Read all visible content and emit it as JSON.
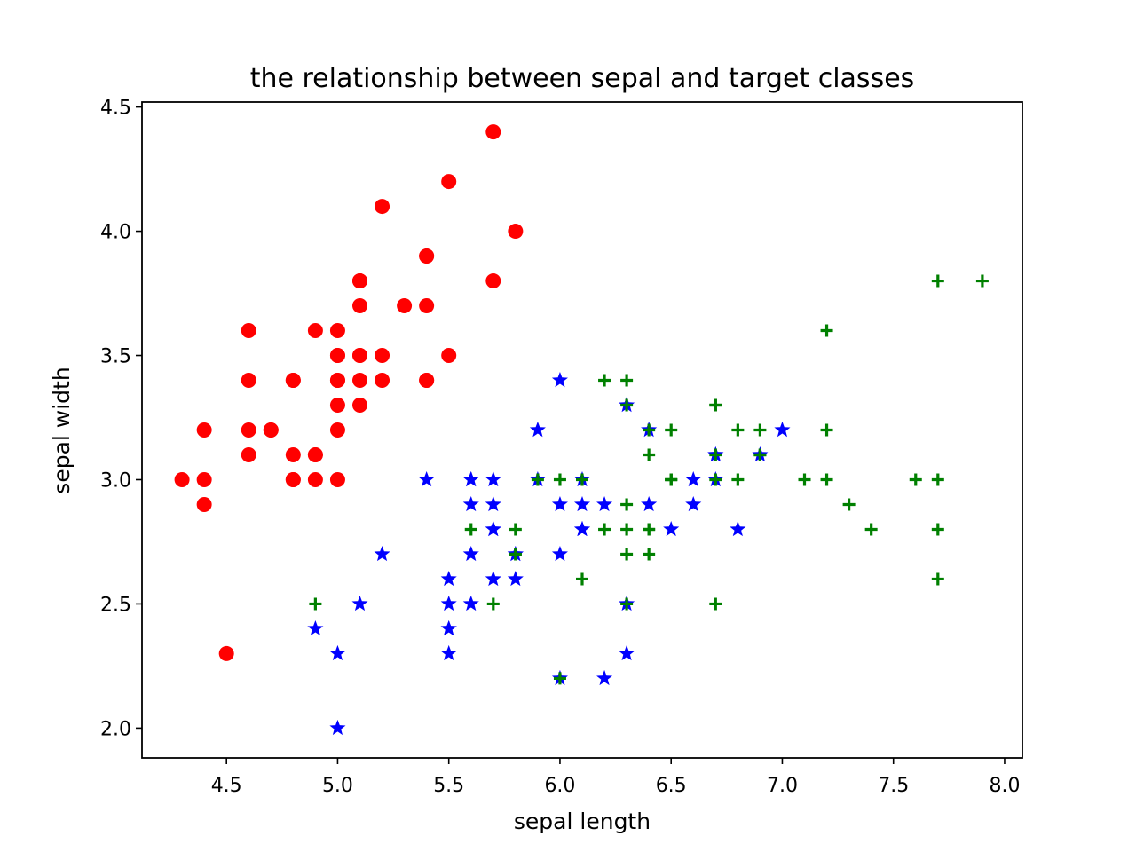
{
  "chart_data": {
    "type": "scatter",
    "title": "the relationship between sepal and target classes",
    "xlabel": "sepal length",
    "ylabel": "sepal width",
    "xlim": [
      4.12,
      8.08
    ],
    "ylim": [
      1.88,
      4.52
    ],
    "xticks": [
      4.5,
      5.0,
      5.5,
      6.0,
      6.5,
      7.0,
      7.5,
      8.0
    ],
    "xtick_labels": [
      "4.5",
      "5.0",
      "5.5",
      "6.0",
      "6.5",
      "7.0",
      "7.5",
      "8.0"
    ],
    "yticks": [
      2.0,
      2.5,
      3.0,
      3.5,
      4.0,
      4.5
    ],
    "ytick_labels": [
      "2.0",
      "2.5",
      "3.0",
      "3.5",
      "4.0",
      "4.5"
    ],
    "grid": false,
    "series": [
      {
        "marker": "circle",
        "color": "#ff0000",
        "points": [
          [
            5.1,
            3.5
          ],
          [
            4.9,
            3.0
          ],
          [
            4.7,
            3.2
          ],
          [
            4.6,
            3.1
          ],
          [
            5.0,
            3.6
          ],
          [
            5.4,
            3.9
          ],
          [
            4.6,
            3.4
          ],
          [
            5.0,
            3.4
          ],
          [
            4.4,
            2.9
          ],
          [
            4.9,
            3.1
          ],
          [
            5.4,
            3.7
          ],
          [
            4.8,
            3.4
          ],
          [
            4.8,
            3.0
          ],
          [
            4.3,
            3.0
          ],
          [
            5.8,
            4.0
          ],
          [
            5.7,
            4.4
          ],
          [
            5.4,
            3.9
          ],
          [
            5.1,
            3.5
          ],
          [
            5.7,
            3.8
          ],
          [
            5.1,
            3.8
          ],
          [
            5.4,
            3.4
          ],
          [
            5.1,
            3.7
          ],
          [
            4.6,
            3.6
          ],
          [
            5.1,
            3.3
          ],
          [
            4.8,
            3.4
          ],
          [
            5.0,
            3.0
          ],
          [
            5.0,
            3.4
          ],
          [
            5.2,
            3.5
          ],
          [
            5.2,
            3.4
          ],
          [
            4.7,
            3.2
          ],
          [
            4.8,
            3.1
          ],
          [
            5.4,
            3.4
          ],
          [
            5.2,
            4.1
          ],
          [
            5.5,
            4.2
          ],
          [
            4.9,
            3.1
          ],
          [
            5.0,
            3.2
          ],
          [
            5.5,
            3.5
          ],
          [
            4.9,
            3.6
          ],
          [
            4.4,
            3.0
          ],
          [
            5.1,
            3.4
          ],
          [
            5.0,
            3.5
          ],
          [
            4.5,
            2.3
          ],
          [
            4.4,
            3.2
          ],
          [
            5.0,
            3.5
          ],
          [
            5.1,
            3.8
          ],
          [
            4.8,
            3.0
          ],
          [
            5.1,
            3.8
          ],
          [
            4.6,
            3.2
          ],
          [
            5.3,
            3.7
          ],
          [
            5.0,
            3.3
          ]
        ]
      },
      {
        "marker": "star",
        "color": "#0000ff",
        "points": [
          [
            7.0,
            3.2
          ],
          [
            6.4,
            3.2
          ],
          [
            6.9,
            3.1
          ],
          [
            5.5,
            2.3
          ],
          [
            6.5,
            2.8
          ],
          [
            5.7,
            2.8
          ],
          [
            6.3,
            3.3
          ],
          [
            4.9,
            2.4
          ],
          [
            6.6,
            2.9
          ],
          [
            5.2,
            2.7
          ],
          [
            5.0,
            2.0
          ],
          [
            5.9,
            3.0
          ],
          [
            6.0,
            2.2
          ],
          [
            6.1,
            2.9
          ],
          [
            5.6,
            2.9
          ],
          [
            6.7,
            3.1
          ],
          [
            5.6,
            3.0
          ],
          [
            5.8,
            2.7
          ],
          [
            6.2,
            2.2
          ],
          [
            5.6,
            2.5
          ],
          [
            5.9,
            3.2
          ],
          [
            6.1,
            2.8
          ],
          [
            6.3,
            2.5
          ],
          [
            6.1,
            2.8
          ],
          [
            6.4,
            2.9
          ],
          [
            6.6,
            3.0
          ],
          [
            6.8,
            2.8
          ],
          [
            6.7,
            3.0
          ],
          [
            6.0,
            2.9
          ],
          [
            5.7,
            2.6
          ],
          [
            5.5,
            2.4
          ],
          [
            5.5,
            2.4
          ],
          [
            5.8,
            2.7
          ],
          [
            6.0,
            2.7
          ],
          [
            5.4,
            3.0
          ],
          [
            6.0,
            3.4
          ],
          [
            6.7,
            3.1
          ],
          [
            6.3,
            2.3
          ],
          [
            5.6,
            3.0
          ],
          [
            5.5,
            2.5
          ],
          [
            5.5,
            2.6
          ],
          [
            6.1,
            3.0
          ],
          [
            5.8,
            2.6
          ],
          [
            5.0,
            2.3
          ],
          [
            5.6,
            2.7
          ],
          [
            5.7,
            3.0
          ],
          [
            5.7,
            2.9
          ],
          [
            6.2,
            2.9
          ],
          [
            5.1,
            2.5
          ],
          [
            5.7,
            2.8
          ]
        ]
      },
      {
        "marker": "plus",
        "color": "#008000",
        "points": [
          [
            6.3,
            3.3
          ],
          [
            5.8,
            2.7
          ],
          [
            7.1,
            3.0
          ],
          [
            6.3,
            2.9
          ],
          [
            6.5,
            3.0
          ],
          [
            7.6,
            3.0
          ],
          [
            4.9,
            2.5
          ],
          [
            7.3,
            2.9
          ],
          [
            6.7,
            2.5
          ],
          [
            7.2,
            3.6
          ],
          [
            6.5,
            3.2
          ],
          [
            6.4,
            2.7
          ],
          [
            6.8,
            3.0
          ],
          [
            5.7,
            2.5
          ],
          [
            5.8,
            2.8
          ],
          [
            6.4,
            3.2
          ],
          [
            6.5,
            3.0
          ],
          [
            7.7,
            3.8
          ],
          [
            7.7,
            2.6
          ],
          [
            6.0,
            2.2
          ],
          [
            6.9,
            3.2
          ],
          [
            5.6,
            2.8
          ],
          [
            7.7,
            2.8
          ],
          [
            6.3,
            2.7
          ],
          [
            6.7,
            3.3
          ],
          [
            7.2,
            3.2
          ],
          [
            6.2,
            2.8
          ],
          [
            6.1,
            3.0
          ],
          [
            6.4,
            2.8
          ],
          [
            7.2,
            3.0
          ],
          [
            7.4,
            2.8
          ],
          [
            7.9,
            3.8
          ],
          [
            6.4,
            2.8
          ],
          [
            6.3,
            2.8
          ],
          [
            6.1,
            2.6
          ],
          [
            7.7,
            3.0
          ],
          [
            6.3,
            3.4
          ],
          [
            6.4,
            3.1
          ],
          [
            6.0,
            3.0
          ],
          [
            6.9,
            3.1
          ],
          [
            6.7,
            3.1
          ],
          [
            6.9,
            3.1
          ],
          [
            5.8,
            2.7
          ],
          [
            6.8,
            3.2
          ],
          [
            6.7,
            3.3
          ],
          [
            6.7,
            3.0
          ],
          [
            6.3,
            2.5
          ],
          [
            6.5,
            3.0
          ],
          [
            6.2,
            3.4
          ],
          [
            5.9,
            3.0
          ]
        ]
      }
    ]
  }
}
